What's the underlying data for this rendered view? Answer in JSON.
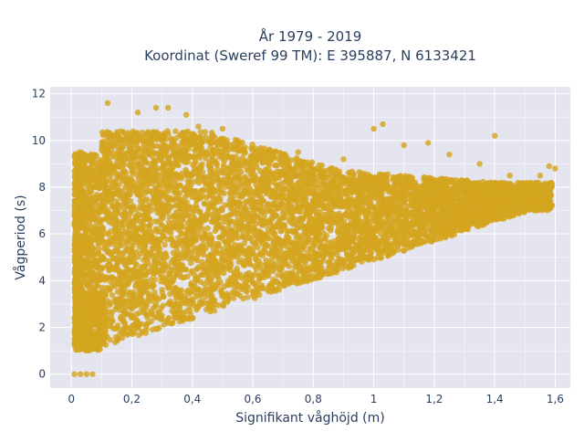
{
  "chart_data": {
    "type": "scatter",
    "title_line1": "År 1979 - 2019",
    "title_line2": "Koordinat (Sweref 99 TM): E 395887, N 6133421",
    "xlabel": "Signifikant våghöjd (m)",
    "ylabel": "Vågperiod (s)",
    "xlim": [
      -0.07,
      1.65
    ],
    "ylim": [
      -0.6,
      12.3
    ],
    "xticks": [
      0,
      0.2,
      0.4,
      0.6,
      0.8,
      1,
      1.2,
      1.4,
      1.6
    ],
    "xtick_labels": [
      "0",
      "0,2",
      "0,4",
      "0,6",
      "0,8",
      "1",
      "1,2",
      "1,4",
      "1,6"
    ],
    "yticks": [
      0,
      2,
      4,
      6,
      8,
      10,
      12
    ],
    "ytick_labels": [
      "0",
      "2",
      "4",
      "6",
      "8",
      "10",
      "12"
    ],
    "grid": true,
    "legend": "none",
    "marker_color": "#D4A520",
    "plot_bg": "#E5E5EF",
    "series": [
      {
        "points": [
          [
            0.01,
            0.0
          ],
          [
            0.03,
            0.0
          ],
          [
            0.05,
            0.0
          ],
          [
            0.07,
            0.0
          ],
          [
            0.01,
            1.5
          ],
          [
            0.02,
            2.8
          ],
          [
            0.03,
            4.5
          ],
          [
            0.04,
            6.5
          ],
          [
            0.05,
            8.8
          ],
          [
            0.06,
            1.2
          ],
          [
            0.08,
            3.3
          ],
          [
            0.1,
            1.3
          ],
          [
            0.12,
            5.2
          ],
          [
            0.12,
            11.6
          ],
          [
            0.15,
            2.0
          ],
          [
            0.18,
            9.2
          ],
          [
            0.2,
            1.8
          ],
          [
            0.22,
            11.2
          ],
          [
            0.25,
            3.0
          ],
          [
            0.28,
            11.4
          ],
          [
            0.3,
            2.5
          ],
          [
            0.32,
            11.4
          ],
          [
            0.35,
            4.5
          ],
          [
            0.38,
            11.1
          ],
          [
            0.4,
            3.2
          ],
          [
            0.42,
            10.6
          ],
          [
            0.45,
            4.0
          ],
          [
            0.5,
            10.5
          ],
          [
            0.5,
            3.4
          ],
          [
            0.55,
            10.0
          ],
          [
            0.6,
            3.9
          ],
          [
            0.62,
            9.6
          ],
          [
            0.7,
            4.2
          ],
          [
            0.75,
            9.5
          ],
          [
            0.8,
            4.6
          ],
          [
            0.9,
            9.2
          ],
          [
            0.95,
            4.9
          ],
          [
            1.0,
            10.5
          ],
          [
            1.03,
            10.7
          ],
          [
            1.05,
            5.2
          ],
          [
            1.1,
            9.8
          ],
          [
            1.15,
            5.6
          ],
          [
            1.18,
            9.9
          ],
          [
            1.2,
            6.0
          ],
          [
            1.25,
            9.4
          ],
          [
            1.3,
            6.3
          ],
          [
            1.35,
            9.0
          ],
          [
            1.4,
            7.0
          ],
          [
            1.4,
            10.2
          ],
          [
            1.45,
            8.5
          ],
          [
            1.5,
            7.3
          ],
          [
            1.55,
            8.5
          ],
          [
            1.58,
            8.9
          ],
          [
            1.6,
            8.8
          ]
        ]
      }
    ]
  }
}
